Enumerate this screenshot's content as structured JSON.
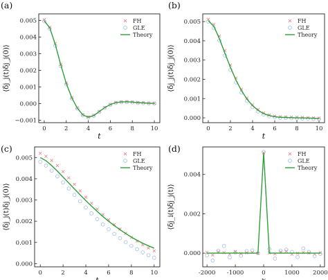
{
  "figure": {
    "panel_count": 4
  },
  "colors": {
    "fh": "#e88c8c",
    "gle": "#8fb3e0",
    "theory": "#2e9e3a",
    "frame": "#222222"
  },
  "chart_data": [
    {
      "type": "scatter",
      "panel_label": "(a)",
      "xlabel": "t",
      "ylabel": "⟨δj_j(t)δj_j(0)⟩",
      "xlim": [
        -0.5,
        10.5
      ],
      "ylim": [
        -0.00115,
        0.0054
      ],
      "x_ticks": [
        0,
        2,
        4,
        6,
        8,
        10
      ],
      "y_ticks": [
        -0.001,
        0.0,
        0.001,
        0.002,
        0.003,
        0.004,
        0.005
      ],
      "y_tick_labels": [
        "−0.001",
        "0.000",
        "0.001",
        "0.002",
        "0.003",
        "0.004",
        "0.005"
      ],
      "legend": {
        "position": "top-right",
        "entries": [
          "FH",
          "GLE",
          "Theory"
        ]
      },
      "x": [
        0,
        0.5,
        1,
        1.5,
        2,
        2.5,
        3,
        3.5,
        4,
        4.5,
        5,
        5.5,
        6,
        6.5,
        7,
        7.5,
        8,
        8.5,
        9,
        9.5,
        10
      ],
      "series": [
        {
          "name": "Theory",
          "values": [
            0.00498,
            0.00456,
            0.00356,
            0.00233,
            0.00121,
            0.00035,
            -0.00027,
            -0.00068,
            -0.00082,
            -0.00072,
            -0.00048,
            -0.00024,
            -6e-05,
            6e-05,
            0.0001,
            0.00011,
            9e-05,
            6e-05,
            4e-05,
            2e-05,
            1e-05
          ]
        },
        {
          "name": "FH",
          "values": [
            0.00505,
            0.0046,
            0.00362,
            0.00236,
            0.00124,
            0.00036,
            -0.00026,
            -0.00067,
            -0.0008,
            -0.0007,
            -0.00047,
            -0.00023,
            -5e-05,
            7e-05,
            0.00011,
            0.00012,
            0.0001,
            7e-05,
            5e-05,
            3e-05,
            2e-05
          ]
        },
        {
          "name": "GLE",
          "values": [
            0.00495,
            0.0045,
            0.00348,
            0.00226,
            0.00116,
            0.00031,
            -0.0003,
            -0.0007,
            -0.00084,
            -0.00074,
            -0.0005,
            -0.00026,
            -8e-05,
            4e-05,
            8e-05,
            9e-05,
            7e-05,
            4e-05,
            2e-05,
            1e-05,
            0.0
          ]
        }
      ]
    },
    {
      "type": "scatter",
      "panel_label": "(b)",
      "xlabel": "t",
      "ylabel": "⟨δj_j(t)δj_j(0)⟩",
      "xlim": [
        -0.5,
        10.5
      ],
      "ylim": [
        -0.00025,
        0.0054
      ],
      "x_ticks": [
        0,
        2,
        4,
        6,
        8,
        10
      ],
      "y_ticks": [
        0.0,
        0.001,
        0.002,
        0.003,
        0.004,
        0.005
      ],
      "y_tick_labels": [
        "0.000",
        "0.001",
        "0.002",
        "0.003",
        "0.004",
        "0.005"
      ],
      "legend": {
        "position": "top-right",
        "entries": [
          "FH",
          "GLE",
          "Theory"
        ]
      },
      "x": [
        0,
        0.5,
        1,
        1.5,
        2,
        2.5,
        3,
        3.5,
        4,
        4.5,
        5,
        5.5,
        6,
        6.5,
        7,
        7.5,
        8,
        8.5,
        9,
        9.5,
        10
      ],
      "series": [
        {
          "name": "Theory",
          "values": [
            0.00505,
            0.00475,
            0.00412,
            0.00336,
            0.00262,
            0.00196,
            0.00141,
            0.00097,
            0.00063,
            0.00039,
            0.00022,
            0.00012,
            6e-05,
            3e-05,
            2e-05,
            1e-05,
            0.0,
            0.0,
            -1e-05,
            -2e-05,
            -3e-05
          ]
        },
        {
          "name": "FH",
          "values": [
            0.00512,
            0.00485,
            0.00424,
            0.00349,
            0.00274,
            0.00207,
            0.00149,
            0.00103,
            0.00068,
            0.00043,
            0.00026,
            0.00015,
            9e-05,
            6e-05,
            5e-05,
            4e-05,
            3e-05,
            2e-05,
            1e-05,
            0.0,
            -1e-05
          ]
        },
        {
          "name": "GLE",
          "values": [
            0.005,
            0.00466,
            0.00401,
            0.00324,
            0.00249,
            0.00184,
            0.00131,
            0.00088,
            0.00056,
            0.00033,
            0.00017,
            8e-05,
            3e-05,
            0.0,
            -1e-05,
            -2e-05,
            -3e-05,
            -4e-05,
            -5e-05,
            -6e-05,
            -7e-05
          ]
        }
      ]
    },
    {
      "type": "scatter",
      "panel_label": "(c)",
      "xlabel": "t",
      "ylabel": "⟨δj_j(t)δj_j(0)⟩",
      "xlim": [
        -0.5,
        10.5
      ],
      "ylim": [
        -0.00015,
        0.0055
      ],
      "x_ticks": [
        0,
        2,
        4,
        6,
        8,
        10
      ],
      "y_ticks": [
        0.0,
        0.001,
        0.002,
        0.003,
        0.004,
        0.005
      ],
      "y_tick_labels": [
        "0.000",
        "0.001",
        "0.002",
        "0.003",
        "0.004",
        "0.005"
      ],
      "legend": {
        "position": "top-right",
        "entries": [
          "FH",
          "GLE",
          "Theory"
        ]
      },
      "x": [
        0,
        0.5,
        1,
        1.5,
        2,
        2.5,
        3,
        3.5,
        4,
        4.5,
        5,
        5.5,
        6,
        6.5,
        7,
        7.5,
        8,
        8.5,
        9,
        9.5,
        10
      ],
      "series": [
        {
          "name": "Theory",
          "values": [
            0.005,
            0.00485,
            0.00462,
            0.00436,
            0.00408,
            0.0038,
            0.00352,
            0.00324,
            0.00297,
            0.00271,
            0.00246,
            0.00222,
            0.002,
            0.00179,
            0.0016,
            0.00142,
            0.00125,
            0.0011,
            0.00096,
            0.00084,
            0.00073
          ]
        },
        {
          "name": "FH",
          "values": [
            0.0052,
            0.00506,
            0.00486,
            0.00462,
            0.00434,
            0.00404,
            0.00374,
            0.00343,
            0.00313,
            0.00285,
            0.00257,
            0.00231,
            0.00207,
            0.00184,
            0.00163,
            0.00143,
            0.00124,
            0.00106,
            0.00089,
            0.00074,
            0.0006
          ]
        },
        {
          "name": "GLE",
          "values": [
            0.0048,
            0.00462,
            0.00438,
            0.00411,
            0.00383,
            0.00354,
            0.00324,
            0.00294,
            0.00265,
            0.00237,
            0.0021,
            0.00185,
            0.00162,
            0.0014,
            0.0012,
            0.00101,
            0.00084,
            0.00068,
            0.00053,
            0.0004,
            0.00028
          ]
        }
      ]
    },
    {
      "type": "scatter",
      "panel_label": "(d)",
      "xlabel": "x",
      "ylabel": "⟨δj_i(t)δj_j(t)⟩",
      "xlim": [
        -2150,
        2150
      ],
      "ylim": [
        -0.0007,
        0.0054
      ],
      "x_ticks": [
        -2000,
        -1000,
        0,
        1000,
        2000
      ],
      "y_ticks": [
        0.0,
        0.002,
        0.004
      ],
      "y_tick_labels": [
        "0.000",
        "0.002",
        "0.004"
      ],
      "legend": {
        "position": "top-right",
        "entries": [
          "FH",
          "GLE",
          "Theory"
        ]
      },
      "x": [
        -2000,
        -1800,
        -1600,
        -1400,
        -1200,
        -1000,
        -800,
        -600,
        -400,
        -200,
        0,
        200,
        400,
        600,
        800,
        1000,
        1200,
        1400,
        1600,
        1800,
        2000
      ],
      "series": [
        {
          "name": "Theory",
          "values": [
            0,
            0,
            0,
            0,
            0,
            0,
            0,
            0,
            0,
            0,
            0.0051,
            0,
            0,
            0,
            0,
            0,
            0,
            0,
            0,
            0,
            0
          ]
        },
        {
          "name": "FH",
          "values": [
            3e-05,
            -0.0001,
            6e-05,
            2e-05,
            -5e-05,
            8e-05,
            -3e-05,
            1e-05,
            4e-05,
            -2e-05,
            0.0051,
            1e-05,
            -4e-05,
            6e-05,
            9e-05,
            -6e-05,
            -1e-05,
            3e-05,
            0.0,
            -5e-05,
            2e-05
          ]
        },
        {
          "name": "GLE",
          "values": [
            -0.00012,
            -0.00038,
            0.00012,
            0.00036,
            -0.00022,
            2e-05,
            -0.00013,
            0.0001,
            0.00014,
            0.0,
            0.00515,
            0.00021,
            -0.00028,
            0.00012,
            0.00018,
            6e-05,
            -0.0002,
            0.00024,
            6e-05,
            -0.00016,
            -4e-05
          ]
        }
      ]
    }
  ]
}
